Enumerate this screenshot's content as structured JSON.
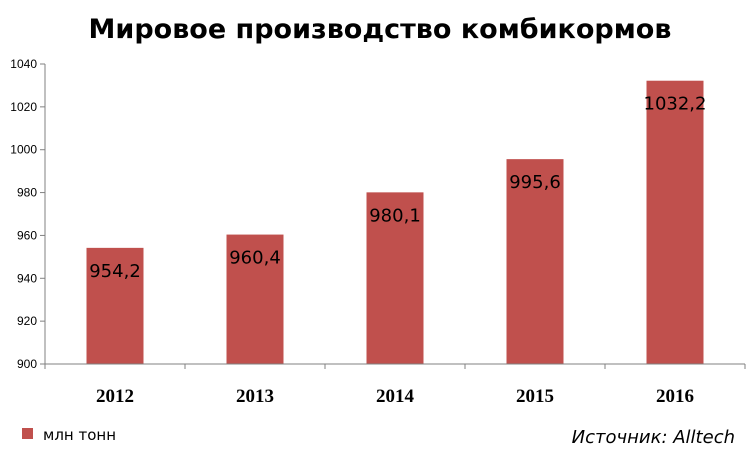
{
  "chart_data": {
    "type": "bar",
    "title": "Мировое производство комбикормов",
    "categories": [
      "2012",
      "2013",
      "2014",
      "2015",
      "2016"
    ],
    "series": [
      {
        "name": "млн тонн",
        "values": [
          954.2,
          960.4,
          980.1,
          995.6,
          1032.2
        ],
        "labels": [
          "954,2",
          "960,4",
          "980,1",
          "995,6",
          "1032,2"
        ],
        "color": "#c0504d"
      }
    ],
    "yticks": [
      900,
      920,
      940,
      960,
      980,
      1000,
      1020,
      1040
    ],
    "ylim": [
      900,
      1040
    ],
    "xlabel": "",
    "ylabel": "",
    "grid": false,
    "legend": "bottom-left",
    "source": "Источник: Alltech"
  }
}
